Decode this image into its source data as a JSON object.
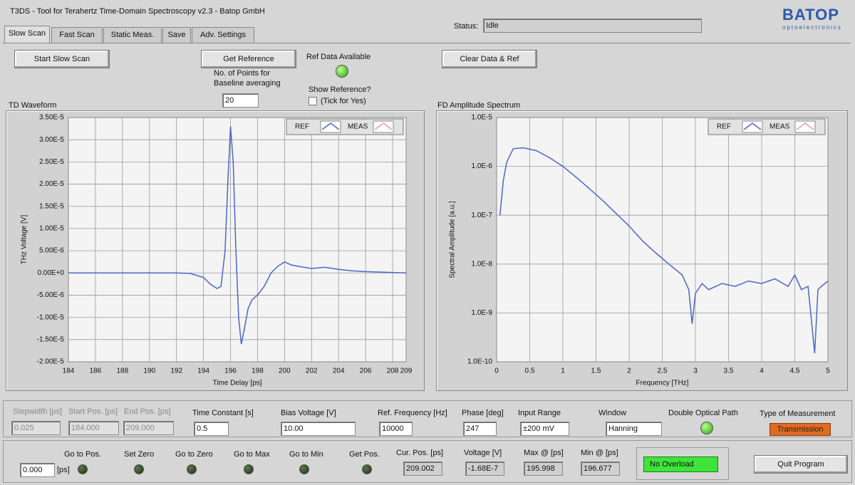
{
  "window": {
    "title": "T3DS  -  Tool for Terahertz Time-Domain Spectroscopy v2.3  -  Batop GmbH",
    "logo": "BATOP",
    "logo_sub": "optoelectronics",
    "status_label": "Status:",
    "status": "Idle"
  },
  "tabs": [
    "Slow Scan",
    "Fast Scan",
    "Static Meas.",
    "Save",
    "Adv. Settings"
  ],
  "top_controls": {
    "start": "Start Slow Scan",
    "get_reference": "Get Reference",
    "ref_available": "Ref Data Available",
    "points_label": "No. of Points for Baseline averaging",
    "points": "20",
    "show_reference": "Show Reference?",
    "tick": "(Tick for Yes)",
    "clear": "Clear Data & Ref"
  },
  "chart_data": [
    {
      "type": "line",
      "title": "TD Waveform",
      "x_label": "Time Delay [ps]",
      "y_label": "THz Voltage [V]",
      "grid": true,
      "ylog": false,
      "x": [
        184,
        186,
        188,
        190,
        192,
        193,
        194,
        194.5,
        195,
        195.3,
        195.6,
        195.8,
        196.0,
        196.2,
        196.4,
        196.6,
        196.8,
        197.0,
        197.3,
        197.6,
        198,
        198.5,
        199,
        199.5,
        200,
        200.5,
        201,
        202,
        203,
        204,
        205,
        206,
        207,
        208,
        209
      ],
      "series": [
        {
          "name": "REF",
          "color": "#4a66c8",
          "values": [
            0,
            0,
            0,
            0,
            0,
            -1e-07,
            -1e-06,
            -2.5e-06,
            -3.5e-06,
            -3e-06,
            5e-06,
            2e-05,
            3.3e-05,
            2.5e-05,
            5e-06,
            -1e-05,
            -1.6e-05,
            -1.3e-05,
            -8e-06,
            -6e-06,
            -5e-06,
            -3e-06,
            0,
            1.5e-06,
            2.5e-06,
            1.8e-06,
            1.5e-06,
            1e-06,
            1.3e-06,
            8e-07,
            5e-07,
            3e-07,
            2e-07,
            1e-07,
            0
          ]
        },
        {
          "name": "MEAS",
          "color": "#e89aa8",
          "values": [
            null,
            null,
            null,
            null,
            null,
            null,
            null,
            null,
            null,
            null,
            null,
            null,
            null,
            null,
            null,
            null,
            null,
            null,
            null,
            null,
            null,
            null,
            null,
            null,
            null,
            null,
            null,
            null,
            null,
            null,
            null,
            null,
            null,
            null,
            null
          ]
        }
      ],
      "xlim": [
        184,
        209
      ],
      "xticks": [
        184,
        186,
        188,
        190,
        192,
        194,
        196,
        198,
        200,
        202,
        204,
        206,
        208,
        209
      ],
      "ylim": [
        -2e-05,
        3.5e-05
      ],
      "yticks": [
        {
          "value": -2e-05,
          "label": "-2.00E-5"
        },
        {
          "value": -1.5e-05,
          "label": "-1.50E-5"
        },
        {
          "value": -1e-05,
          "label": "-1.00E-5"
        },
        {
          "value": -5e-06,
          "label": "-5.00E-6"
        },
        {
          "value": 0,
          "label": "0.00E+0"
        },
        {
          "value": 5e-06,
          "label": "5.00E-6"
        },
        {
          "value": 1e-05,
          "label": "1.00E-5"
        },
        {
          "value": 1.5e-05,
          "label": "1.50E-5"
        },
        {
          "value": 2e-05,
          "label": "2.00E-5"
        },
        {
          "value": 2.5e-05,
          "label": "2.50E-5"
        },
        {
          "value": 3e-05,
          "label": "3.00E-5"
        },
        {
          "value": 3.5e-05,
          "label": "3.50E-5"
        }
      ]
    },
    {
      "type": "line",
      "title": "FD Amplitude Spectrum",
      "x_label": "Frequency [THz]",
      "y_label": "Spectral Amplitude  [a.u.]",
      "grid": true,
      "ylog": true,
      "x": [
        0.05,
        0.1,
        0.15,
        0.25,
        0.4,
        0.6,
        0.8,
        1.0,
        1.2,
        1.4,
        1.6,
        1.8,
        2.0,
        2.2,
        2.4,
        2.6,
        2.8,
        2.9,
        2.95,
        3.0,
        3.1,
        3.2,
        3.4,
        3.6,
        3.8,
        4.0,
        4.2,
        4.4,
        4.5,
        4.6,
        4.7,
        4.8,
        4.85,
        4.9,
        5.0
      ],
      "series": [
        {
          "name": "REF",
          "color": "#4a66c8",
          "values": [
            1e-07,
            5e-07,
            1.2e-06,
            2.3e-06,
            2.4e-06,
            2.1e-06,
            1.5e-06,
            1e-06,
            6e-07,
            3.5e-07,
            2e-07,
            1.1e-07,
            6e-08,
            3e-08,
            1.7e-08,
            1e-08,
            6e-09,
            3e-09,
            6e-10,
            2.5e-09,
            4e-09,
            3e-09,
            4e-09,
            3.5e-09,
            4.5e-09,
            4e-09,
            5e-09,
            3.5e-09,
            6e-09,
            3e-09,
            3.5e-09,
            1.5e-10,
            3e-09,
            3.5e-09,
            4.5e-09
          ]
        },
        {
          "name": "MEAS",
          "color": "#e89aa8",
          "values": [
            null,
            null,
            null,
            null,
            null,
            null,
            null,
            null,
            null,
            null,
            null,
            null,
            null,
            null,
            null,
            null,
            null,
            null,
            null,
            null,
            null,
            null,
            null,
            null,
            null,
            null,
            null,
            null,
            null,
            null,
            null,
            null,
            null,
            null,
            null
          ]
        }
      ],
      "xlim": [
        0,
        5
      ],
      "xticks": [
        0,
        0.5,
        1,
        1.5,
        2,
        2.5,
        3,
        3.5,
        4,
        4.5,
        5
      ],
      "ylim": [
        1e-10,
        1e-05
      ],
      "yticks": [
        {
          "value": 1e-10,
          "label": "1.0E-10"
        },
        {
          "value": 1e-09,
          "label": "1.0E-9"
        },
        {
          "value": 1e-08,
          "label": "1.0E-8"
        },
        {
          "value": 1e-07,
          "label": "1.0E-7"
        },
        {
          "value": 1e-06,
          "label": "1.0E-6"
        },
        {
          "value": 1e-05,
          "label": "1.0E-5"
        }
      ]
    }
  ],
  "parameters": {
    "stepwidth_label": "Stepwidth [ps]",
    "stepwidth": "0.025",
    "start_label": "Start Pos. [ps]",
    "start": "184.000",
    "end_label": "End Pos. [ps]",
    "end": "209.000",
    "time_constant_label": "Time Constant [s]",
    "time_constant": "0.5",
    "bias_label": "Bias Voltage [V]",
    "bias": "10.00",
    "ref_freq_label": "Ref. Frequency [Hz]",
    "ref_freq": "10000",
    "phase_label": "Phase [deg]",
    "phase": "247",
    "input_range_label": "Input Range",
    "input_range": "±200 mV",
    "window_label": "Window",
    "window": "Hanning",
    "double_path_label": "Double Optical Path",
    "type_label": "Type of Measurement",
    "type": "Transmission"
  },
  "position": {
    "value": "0.000",
    "unit": "[ps]",
    "leds": [
      "Go to Pos.",
      "Set Zero",
      "Go to Zero",
      "Go to Max",
      "Go to Min",
      "Get Pos."
    ],
    "cur_label": "Cur. Pos. [ps]",
    "cur": "209.002",
    "voltage_label": "Voltage [V]",
    "voltage": "-1.68E-7",
    "max_label": "Max @ [ps]",
    "max": "195.998",
    "min_label": "Min @ [ps]",
    "min": "196.677",
    "overload": "No Overload",
    "quit": "Quit Program"
  }
}
